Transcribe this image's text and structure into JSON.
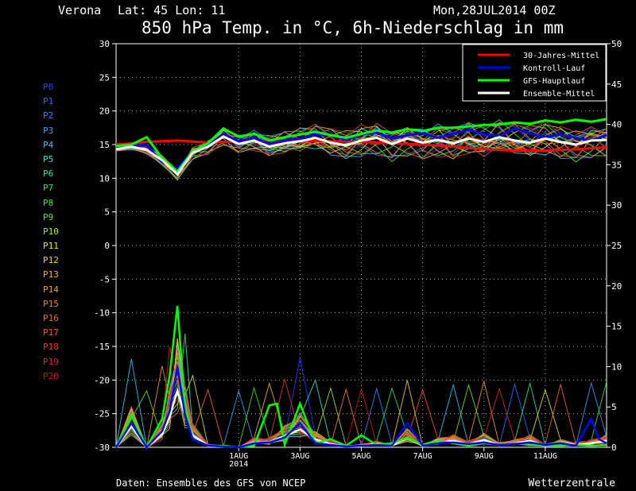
{
  "header": {
    "location": "Verona",
    "coords": "Lat: 45 Lon: 11",
    "run": "Mon,28JUL2014 00Z",
    "title": "850 hPa Temp. in °C, 6h-Niederschlag in mm"
  },
  "footer": {
    "source": "Daten: Ensembles des GFS von NCEP",
    "brand": "Wetterzentrale"
  },
  "members": [
    {
      "label": "P0",
      "color": "#2a3bff"
    },
    {
      "label": "P1",
      "color": "#2a6bff"
    },
    {
      "label": "P2",
      "color": "#2a8bff"
    },
    {
      "label": "P3",
      "color": "#2aa5ff"
    },
    {
      "label": "P4",
      "color": "#2ec6ff"
    },
    {
      "label": "P5",
      "color": "#2ee6d0"
    },
    {
      "label": "P6",
      "color": "#2ee69a"
    },
    {
      "label": "P7",
      "color": "#2ee65a"
    },
    {
      "label": "P8",
      "color": "#3ee62a"
    },
    {
      "label": "P9",
      "color": "#6ee62a"
    },
    {
      "label": "P10",
      "color": "#a6e62a"
    },
    {
      "label": "P11",
      "color": "#e6e62a"
    },
    {
      "label": "P12",
      "color": "#f4d02a"
    },
    {
      "label": "P13",
      "color": "#f4b42a"
    },
    {
      "label": "P14",
      "color": "#f49a2a"
    },
    {
      "label": "P15",
      "color": "#f4822a"
    },
    {
      "label": "P16",
      "color": "#f46a2a"
    },
    {
      "label": "P17",
      "color": "#f4522a"
    },
    {
      "label": "P18",
      "color": "#e43a2a"
    },
    {
      "label": "P19",
      "color": "#d42a2a"
    },
    {
      "label": "P20",
      "color": "#c41a1a"
    }
  ],
  "chart_data": {
    "type": "line",
    "title": "850 hPa Temp. in °C, 6h-Niederschlag in mm",
    "x_ticks": [
      "1AUG",
      "3AUG",
      "5AUG",
      "7AUG",
      "9AUG",
      "11AUG"
    ],
    "x_year": "2014",
    "x_unit": "6-hour steps from Mon 28 JUL 2014 00Z",
    "x_range": [
      0,
      64
    ],
    "x_tick_steps": [
      16,
      24,
      32,
      40,
      48,
      56
    ],
    "y_left": {
      "label": "°C",
      "range": [
        -30,
        30
      ],
      "ticks": [
        -30,
        -25,
        -20,
        -15,
        -10,
        -5,
        0,
        5,
        10,
        15,
        20,
        25,
        30
      ]
    },
    "y_right": {
      "label": "mm",
      "range": [
        0,
        50
      ],
      "ticks": [
        0,
        5,
        10,
        15,
        20,
        25,
        30,
        35,
        40,
        45,
        50
      ]
    },
    "grid": true,
    "legend_position": "top-right",
    "legend": [
      {
        "name": "30-Jahres-Mittel",
        "color": "#ff0000"
      },
      {
        "name": "Kontroll-Lauf",
        "color": "#0000ff"
      },
      {
        "name": "GFS-Hauptlauf",
        "color": "#00ff00"
      },
      {
        "name": "Ensemble-Mittel",
        "color": "#ffffff"
      }
    ],
    "temperature_series": [
      {
        "name": "30-Jahres-Mittel",
        "axis": "left",
        "color": "#ff0000",
        "x": [
          0,
          4,
          8,
          12,
          16,
          20,
          24,
          28,
          32,
          36,
          40,
          44,
          48,
          52,
          56,
          60,
          64
        ],
        "values": [
          15.0,
          15.4,
          15.6,
          15.3,
          15.5,
          15.6,
          15.6,
          15.5,
          15.4,
          15.2,
          15.0,
          14.7,
          14.3,
          14.1,
          14.1,
          14.3,
          14.6
        ]
      },
      {
        "name": "Kontroll-Lauf",
        "axis": "left",
        "color": "#0000ff",
        "x": [
          0,
          4,
          6,
          8,
          10,
          12,
          14,
          16,
          18,
          20,
          22,
          24,
          26,
          28,
          30,
          32,
          34,
          36,
          38,
          40,
          42,
          44,
          46,
          48,
          50,
          52,
          54,
          56,
          58,
          60,
          62,
          64
        ],
        "values": [
          14.6,
          14.9,
          12.4,
          11.4,
          14.0,
          14.8,
          16.6,
          15.5,
          16.0,
          15.1,
          15.6,
          15.9,
          16.5,
          16.4,
          15.7,
          16.5,
          16.8,
          15.9,
          16.4,
          16.7,
          16.0,
          16.6,
          17.2,
          16.5,
          16.3,
          17.4,
          16.7,
          16.1,
          16.5,
          16.0,
          15.6,
          16.4
        ]
      },
      {
        "name": "GFS-Hauptlauf",
        "axis": "left",
        "color": "#00ff00",
        "x": [
          0,
          2,
          4,
          6,
          8,
          10,
          12,
          14,
          16,
          18,
          20,
          22,
          24,
          26,
          28,
          30,
          32,
          34,
          36,
          38,
          40,
          42,
          44,
          46,
          48,
          50,
          52,
          54,
          56,
          58,
          60,
          62,
          64
        ],
        "values": [
          14.8,
          15.0,
          16.1,
          13.0,
          11.0,
          14.0,
          15.2,
          17.4,
          16.2,
          16.6,
          15.6,
          16.1,
          16.5,
          16.9,
          16.4,
          16.0,
          16.6,
          17.1,
          16.8,
          17.3,
          17.0,
          17.5,
          17.5,
          17.7,
          17.9,
          18.0,
          18.3,
          18.1,
          18.6,
          18.3,
          18.7,
          18.4,
          18.8
        ]
      },
      {
        "name": "Ensemble-Mittel",
        "axis": "left",
        "color": "#ffffff",
        "x": [
          0,
          2,
          4,
          6,
          8,
          10,
          12,
          14,
          16,
          18,
          20,
          22,
          24,
          26,
          28,
          30,
          32,
          34,
          36,
          38,
          40,
          42,
          44,
          46,
          48,
          50,
          52,
          54,
          56,
          58,
          60,
          62,
          64
        ],
        "values": [
          14.3,
          14.7,
          14.2,
          12.7,
          10.6,
          13.8,
          14.7,
          16.2,
          15.1,
          15.6,
          14.7,
          15.2,
          15.5,
          16.0,
          15.3,
          14.9,
          15.6,
          16.0,
          15.1,
          15.9,
          15.3,
          15.7,
          15.2,
          15.9,
          15.4,
          16.1,
          15.6,
          15.3,
          15.9,
          15.4,
          15.0,
          15.6,
          15.7
        ]
      }
    ],
    "precipitation_series": [
      {
        "name": "Ensemble-Mittel",
        "axis": "right",
        "color": "#ffffff",
        "x": [
          0,
          2,
          4,
          6,
          7,
          8,
          9,
          10,
          12,
          14,
          16,
          18,
          20,
          22,
          24,
          26,
          28,
          30,
          32,
          34,
          36,
          38,
          40,
          42,
          44,
          46,
          48,
          50,
          52,
          54,
          56,
          58,
          60,
          62,
          64
        ],
        "values": [
          0.0,
          2.6,
          0.0,
          1.6,
          3.8,
          7.0,
          4.0,
          1.5,
          0.2,
          0.1,
          0.0,
          0.6,
          0.6,
          1.4,
          2.2,
          1.0,
          0.4,
          0.1,
          0.2,
          0.4,
          0.2,
          1.2,
          0.2,
          0.6,
          0.8,
          0.4,
          0.9,
          0.3,
          0.5,
          0.8,
          0.2,
          0.5,
          0.3,
          0.5,
          0.8
        ]
      },
      {
        "name": "GFS-Hauptlauf",
        "axis": "right",
        "color": "#00ff00",
        "x": [
          0,
          2,
          4,
          6,
          7,
          8,
          9,
          10,
          12,
          14,
          16,
          18,
          20,
          21,
          22,
          24,
          26,
          28,
          30,
          32,
          34,
          36,
          38,
          40,
          42,
          44,
          46,
          48,
          50,
          52,
          54,
          56,
          58,
          60,
          62,
          64
        ],
        "values": [
          0.0,
          4.0,
          0.0,
          3.5,
          9.0,
          17.5,
          5.0,
          1.0,
          0.2,
          0.2,
          0.0,
          0.2,
          5.2,
          5.4,
          0.3,
          5.4,
          0.5,
          1.0,
          0.2,
          1.5,
          0.3,
          0.5,
          1.2,
          0.3,
          0.8,
          0.5,
          0.2,
          0.5,
          0.3,
          0.5,
          0.3,
          0.2,
          0.2,
          0.3,
          0.2,
          0.3
        ]
      },
      {
        "name": "Kontroll-Lauf",
        "axis": "right",
        "color": "#0000ff",
        "x": [
          0,
          2,
          4,
          6,
          7,
          8,
          9,
          10,
          12,
          14,
          16,
          18,
          20,
          22,
          24,
          26,
          28,
          30,
          32,
          34,
          36,
          38,
          40,
          42,
          44,
          46,
          48,
          50,
          52,
          54,
          56,
          58,
          60,
          62,
          63,
          64
        ],
        "values": [
          0.0,
          3.0,
          0.0,
          2.0,
          4.5,
          10.0,
          4.0,
          1.0,
          0.2,
          0.1,
          0.0,
          0.5,
          0.6,
          1.2,
          3.0,
          0.5,
          0.3,
          0.1,
          0.2,
          0.3,
          0.2,
          3.0,
          0.2,
          0.5,
          0.6,
          0.4,
          0.6,
          0.3,
          0.4,
          0.6,
          0.3,
          0.5,
          0.2,
          3.5,
          1.0,
          0.5
        ]
      }
    ]
  }
}
